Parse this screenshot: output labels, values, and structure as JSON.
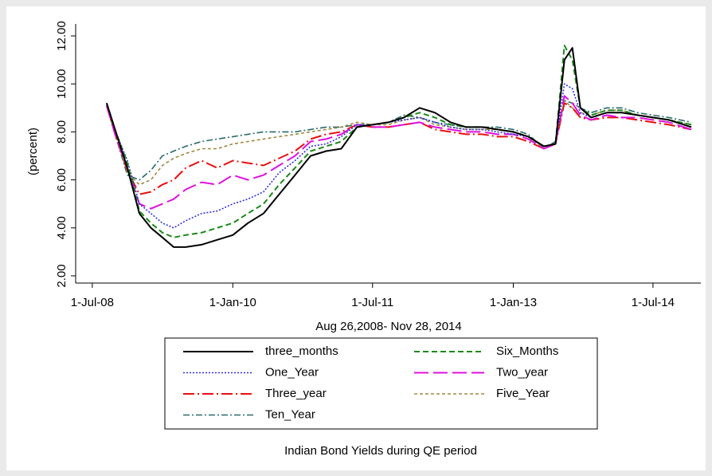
{
  "chart_data": {
    "type": "line",
    "ylabel": "(percent)",
    "xlabel": "Aug 26,2008- Nov 28, 2014",
    "caption": "Indian Bond Yields during QE period",
    "x": [
      "2008-08-26",
      "2008-10-01",
      "2008-11-15",
      "2009-01-01",
      "2009-02-15",
      "2009-04-01",
      "2009-05-15",
      "2009-07-01",
      "2009-09-01",
      "2009-11-01",
      "2010-01-01",
      "2010-03-01",
      "2010-05-01",
      "2010-07-01",
      "2010-09-01",
      "2010-11-01",
      "2011-01-01",
      "2011-03-01",
      "2011-05-01",
      "2011-07-01",
      "2011-09-01",
      "2011-11-01",
      "2012-01-01",
      "2012-03-01",
      "2012-05-01",
      "2012-07-01",
      "2012-09-01",
      "2012-11-01",
      "2013-01-01",
      "2013-03-01",
      "2013-05-01",
      "2013-06-15",
      "2013-07-20",
      "2013-08-20",
      "2013-09-20",
      "2013-11-01",
      "2014-01-01",
      "2014-03-01",
      "2014-05-01",
      "2014-07-01",
      "2014-09-01",
      "2014-11-28"
    ],
    "series": [
      {
        "name": "three_months",
        "color": "#000000",
        "values": [
          9.2,
          8.0,
          6.5,
          4.6,
          4.0,
          3.6,
          3.2,
          3.2,
          3.3,
          3.5,
          3.7,
          4.2,
          4.6,
          5.4,
          6.2,
          7.0,
          7.2,
          7.3,
          8.2,
          8.3,
          8.4,
          8.6,
          9.0,
          8.8,
          8.4,
          8.2,
          8.2,
          8.1,
          8.0,
          7.8,
          7.4,
          7.5,
          11.0,
          11.5,
          9.0,
          8.6,
          8.8,
          8.8,
          8.7,
          8.6,
          8.5,
          8.2
        ]
      },
      {
        "name": "Six_Months",
        "color": "#1a8a1a",
        "values": [
          9.2,
          8.0,
          6.7,
          4.7,
          4.2,
          3.8,
          3.6,
          3.7,
          3.8,
          4.0,
          4.2,
          4.6,
          5.0,
          5.8,
          6.5,
          7.2,
          7.4,
          7.6,
          8.2,
          8.3,
          8.4,
          8.6,
          8.8,
          8.6,
          8.3,
          8.2,
          8.2,
          8.1,
          8.0,
          7.8,
          7.4,
          7.5,
          11.6,
          11.0,
          9.0,
          8.7,
          8.9,
          8.9,
          8.7,
          8.6,
          8.5,
          8.3
        ]
      },
      {
        "name": "One_Year",
        "color": "#3030e0",
        "values": [
          9.2,
          8.0,
          6.8,
          5.0,
          4.6,
          4.2,
          4.0,
          4.3,
          4.6,
          4.7,
          5.0,
          5.2,
          5.5,
          6.3,
          6.8,
          7.4,
          7.5,
          7.8,
          8.3,
          8.3,
          8.4,
          8.5,
          8.6,
          8.4,
          8.2,
          8.1,
          8.1,
          8.0,
          7.9,
          7.8,
          7.4,
          7.5,
          10.0,
          9.8,
          8.8,
          8.6,
          8.8,
          8.8,
          8.7,
          8.6,
          8.5,
          8.2
        ]
      },
      {
        "name": "Two_year",
        "color": "#e010e0",
        "values": [
          9.1,
          7.8,
          6.5,
          5.0,
          4.8,
          5.0,
          5.2,
          5.6,
          5.9,
          5.8,
          6.2,
          6.0,
          6.2,
          6.6,
          7.0,
          7.6,
          7.7,
          7.9,
          8.3,
          8.2,
          8.2,
          8.3,
          8.4,
          8.2,
          8.1,
          8.0,
          8.0,
          7.9,
          7.9,
          7.7,
          7.3,
          7.5,
          9.5,
          9.2,
          8.7,
          8.5,
          8.7,
          8.6,
          8.6,
          8.5,
          8.4,
          8.1
        ]
      },
      {
        "name": "Three_year",
        "color": "#e81010",
        "values": [
          9.1,
          7.8,
          6.4,
          5.4,
          5.5,
          5.8,
          6.0,
          6.5,
          6.8,
          6.5,
          6.8,
          6.7,
          6.6,
          6.9,
          7.2,
          7.7,
          7.9,
          8.0,
          8.3,
          8.2,
          8.2,
          8.3,
          8.4,
          8.1,
          8.0,
          7.9,
          7.9,
          7.8,
          7.8,
          7.6,
          7.3,
          7.5,
          9.2,
          9.0,
          8.6,
          8.5,
          8.6,
          8.6,
          8.5,
          8.4,
          8.3,
          8.1
        ]
      },
      {
        "name": "Five_Year",
        "color": "#a08a40",
        "values": [
          9.1,
          7.9,
          6.3,
          5.8,
          6.0,
          6.6,
          6.9,
          7.1,
          7.3,
          7.3,
          7.5,
          7.6,
          7.7,
          7.8,
          7.9,
          8.0,
          8.1,
          8.2,
          8.4,
          8.3,
          8.3,
          8.5,
          8.6,
          8.3,
          8.2,
          8.1,
          8.1,
          8.1,
          8.0,
          7.8,
          7.3,
          7.5,
          9.3,
          9.0,
          8.8,
          8.7,
          8.9,
          8.9,
          8.7,
          8.6,
          8.5,
          8.3
        ]
      },
      {
        "name": "Ten_Year",
        "color": "#2a6a6a",
        "values": [
          9.1,
          7.8,
          6.2,
          6.0,
          6.4,
          7.0,
          7.2,
          7.4,
          7.6,
          7.7,
          7.8,
          7.9,
          8.0,
          8.0,
          8.0,
          8.1,
          8.2,
          8.2,
          8.3,
          8.3,
          8.4,
          8.7,
          8.6,
          8.4,
          8.3,
          8.2,
          8.2,
          8.2,
          8.1,
          7.9,
          7.3,
          7.6,
          9.3,
          9.2,
          9.0,
          8.8,
          9.0,
          9.0,
          8.8,
          8.7,
          8.6,
          8.4
        ]
      }
    ],
    "xlim": [
      "2008-04-27",
      "2015-01-04"
    ],
    "xticks": [
      {
        "value": "2008-07-01",
        "label": "1-Jul-08"
      },
      {
        "value": "2010-01-01",
        "label": "1-Jan-10"
      },
      {
        "value": "2011-07-01",
        "label": "1-Jul-11"
      },
      {
        "value": "2013-01-01",
        "label": "1-Jan-13"
      },
      {
        "value": "2014-07-01",
        "label": "1-Jul-14"
      }
    ],
    "ylim": [
      1.7,
      12.5
    ],
    "yticks": [
      {
        "value": 2,
        "label": "2.00"
      },
      {
        "value": 4,
        "label": "4.00"
      },
      {
        "value": 6,
        "label": "6.00"
      },
      {
        "value": 8,
        "label": "8.00"
      },
      {
        "value": 10,
        "label": "10.00"
      },
      {
        "value": 12,
        "label": "12.00"
      }
    ],
    "grid": false
  }
}
